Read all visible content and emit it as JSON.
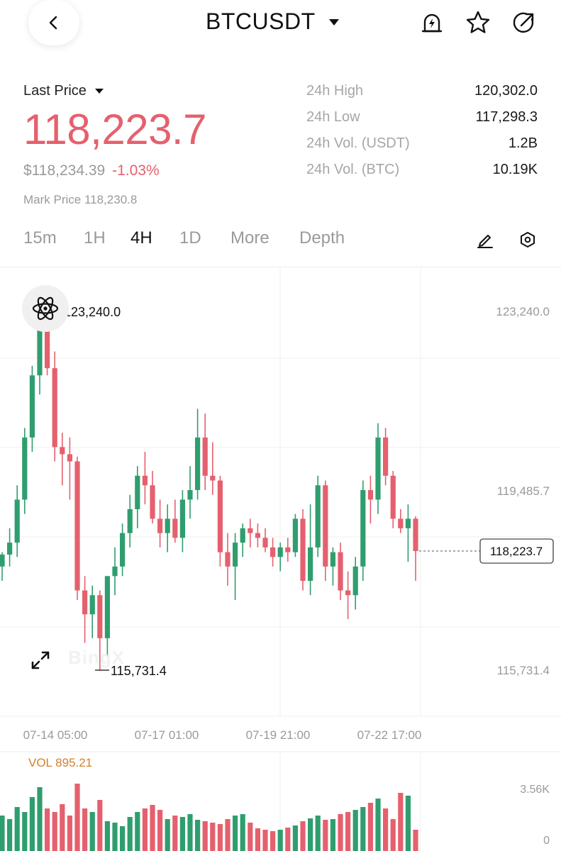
{
  "header": {
    "symbol": "BTCUSDT",
    "icons": [
      "back-icon",
      "dropdown-caret-icon",
      "price-alert-icon",
      "favorite-star-icon",
      "share-icon"
    ]
  },
  "price_info": {
    "label": "Last Price",
    "last_price": "118,223.7",
    "usd_price": "$118,234.39",
    "change": "-1.03%",
    "mark_price": "Mark Price 118,230.8",
    "accent_color": "#e5606e"
  },
  "stats": [
    {
      "label": "24h High",
      "value": "120,302.0"
    },
    {
      "label": "24h Low",
      "value": "117,298.3"
    },
    {
      "label": "24h Vol. (USDT)",
      "value": "1.2B"
    },
    {
      "label": "24h Vol. (BTC)",
      "value": "10.19K"
    }
  ],
  "tabs": [
    {
      "label": "15m",
      "active": false
    },
    {
      "label": "1H",
      "active": false
    },
    {
      "label": "4H",
      "active": true
    },
    {
      "label": "1D",
      "active": false
    },
    {
      "label": "More",
      "active": false
    },
    {
      "label": "Depth",
      "active": false
    }
  ],
  "tab_icons": [
    "draw-pen-icon",
    "settings-hex-icon"
  ],
  "chart_data": {
    "type": "candlestick",
    "timeframe": "4H",
    "up_color": "#2f9e6e",
    "down_color": "#e5606e",
    "y_range": [
      115731.4,
      123240.0
    ],
    "price_axis_labels": [
      "123,240.0",
      "119,485.7",
      "115,731.4"
    ],
    "high_marker": "123,240.0",
    "low_marker": "115,731.4",
    "current_price_tag": "118,223.7",
    "x_tick_labels": [
      "07-14 05:00",
      "07-17 01:00",
      "07-19 21:00",
      "07-22 17:00"
    ],
    "watermark": "BingX",
    "candles": [
      {
        "o": 117900,
        "h": 118200,
        "l": 117600,
        "c": 118150
      },
      {
        "o": 118150,
        "h": 118700,
        "l": 117900,
        "c": 118400
      },
      {
        "o": 118400,
        "h": 119600,
        "l": 118100,
        "c": 119300
      },
      {
        "o": 119300,
        "h": 120800,
        "l": 119000,
        "c": 120600
      },
      {
        "o": 120600,
        "h": 122100,
        "l": 120300,
        "c": 121900
      },
      {
        "o": 121900,
        "h": 123240,
        "l": 121500,
        "c": 123000
      },
      {
        "o": 123000,
        "h": 123100,
        "l": 121900,
        "c": 122050
      },
      {
        "o": 122050,
        "h": 122400,
        "l": 120100,
        "c": 120400
      },
      {
        "o": 120400,
        "h": 120700,
        "l": 119600,
        "c": 120250
      },
      {
        "o": 120250,
        "h": 120600,
        "l": 119300,
        "c": 120100
      },
      {
        "o": 120100,
        "h": 120200,
        "l": 117200,
        "c": 117400
      },
      {
        "o": 117400,
        "h": 117700,
        "l": 116300,
        "c": 116900
      },
      {
        "o": 116900,
        "h": 117500,
        "l": 116400,
        "c": 117300
      },
      {
        "o": 117300,
        "h": 117400,
        "l": 115731.4,
        "c": 116400
      },
      {
        "o": 116400,
        "h": 117700,
        "l": 116000,
        "c": 117700
      },
      {
        "o": 117700,
        "h": 118300,
        "l": 117300,
        "c": 117900
      },
      {
        "o": 117900,
        "h": 118800,
        "l": 117700,
        "c": 118600
      },
      {
        "o": 118600,
        "h": 119400,
        "l": 118300,
        "c": 119100
      },
      {
        "o": 119100,
        "h": 120000,
        "l": 118700,
        "c": 119800
      },
      {
        "o": 119800,
        "h": 120300,
        "l": 119200,
        "c": 119600
      },
      {
        "o": 119600,
        "h": 119900,
        "l": 118800,
        "c": 118900
      },
      {
        "o": 118900,
        "h": 119300,
        "l": 118300,
        "c": 118600
      },
      {
        "o": 118600,
        "h": 119200,
        "l": 118200,
        "c": 118900
      },
      {
        "o": 118900,
        "h": 119300,
        "l": 118400,
        "c": 118500
      },
      {
        "o": 118500,
        "h": 119500,
        "l": 118200,
        "c": 119300
      },
      {
        "o": 119300,
        "h": 120000,
        "l": 118900,
        "c": 119500
      },
      {
        "o": 119500,
        "h": 121200,
        "l": 119300,
        "c": 120600
      },
      {
        "o": 120600,
        "h": 121100,
        "l": 119500,
        "c": 119800
      },
      {
        "o": 119800,
        "h": 120500,
        "l": 119400,
        "c": 119700
      },
      {
        "o": 119700,
        "h": 119800,
        "l": 117900,
        "c": 118200
      },
      {
        "o": 118200,
        "h": 118600,
        "l": 117500,
        "c": 117900
      },
      {
        "o": 117900,
        "h": 118600,
        "l": 117200,
        "c": 118400
      },
      {
        "o": 118400,
        "h": 118800,
        "l": 118100,
        "c": 118700
      },
      {
        "o": 118700,
        "h": 118900,
        "l": 118300,
        "c": 118600
      },
      {
        "o": 118600,
        "h": 118800,
        "l": 118300,
        "c": 118500
      },
      {
        "o": 118500,
        "h": 118700,
        "l": 118200,
        "c": 118300
      },
      {
        "o": 118300,
        "h": 118500,
        "l": 117900,
        "c": 118100
      },
      {
        "o": 118100,
        "h": 118400,
        "l": 117800,
        "c": 118300
      },
      {
        "o": 118300,
        "h": 118500,
        "l": 118000,
        "c": 118200
      },
      {
        "o": 118200,
        "h": 119000,
        "l": 118100,
        "c": 118900
      },
      {
        "o": 118900,
        "h": 119100,
        "l": 117400,
        "c": 117600
      },
      {
        "o": 117600,
        "h": 119200,
        "l": 117300,
        "c": 118300
      },
      {
        "o": 118300,
        "h": 119800,
        "l": 118100,
        "c": 119600
      },
      {
        "o": 119600,
        "h": 119700,
        "l": 117600,
        "c": 117900
      },
      {
        "o": 117900,
        "h": 118300,
        "l": 117500,
        "c": 118200
      },
      {
        "o": 118200,
        "h": 118400,
        "l": 117200,
        "c": 117400
      },
      {
        "o": 117400,
        "h": 117800,
        "l": 116800,
        "c": 117300
      },
      {
        "o": 117300,
        "h": 118100,
        "l": 117000,
        "c": 117900
      },
      {
        "o": 117900,
        "h": 119700,
        "l": 117600,
        "c": 119500
      },
      {
        "o": 119500,
        "h": 119800,
        "l": 118800,
        "c": 119300
      },
      {
        "o": 119300,
        "h": 120900,
        "l": 119000,
        "c": 120600
      },
      {
        "o": 120600,
        "h": 120800,
        "l": 119600,
        "c": 119800
      },
      {
        "o": 119800,
        "h": 119900,
        "l": 118700,
        "c": 118900
      },
      {
        "o": 118900,
        "h": 119100,
        "l": 118600,
        "c": 118700
      },
      {
        "o": 118700,
        "h": 119200,
        "l": 118000,
        "c": 118900
      },
      {
        "o": 118900,
        "h": 118950,
        "l": 117600,
        "c": 118223.7
      }
    ]
  },
  "volume": {
    "label": "VOL 895.21",
    "axis_labels": [
      "3.56K",
      "0"
    ],
    "bars": [
      0.5,
      0.45,
      0.62,
      0.55,
      0.76,
      0.9,
      0.6,
      0.55,
      0.66,
      0.5,
      0.95,
      0.6,
      0.55,
      0.72,
      0.42,
      0.4,
      0.35,
      0.48,
      0.55,
      0.6,
      0.65,
      0.58,
      0.45,
      0.5,
      0.48,
      0.52,
      0.44,
      0.42,
      0.4,
      0.38,
      0.45,
      0.5,
      0.52,
      0.4,
      0.32,
      0.3,
      0.28,
      0.3,
      0.33,
      0.36,
      0.42,
      0.46,
      0.5,
      0.44,
      0.45,
      0.52,
      0.55,
      0.58,
      0.62,
      0.68,
      0.74,
      0.6,
      0.45,
      0.82,
      0.78,
      0.3
    ]
  }
}
